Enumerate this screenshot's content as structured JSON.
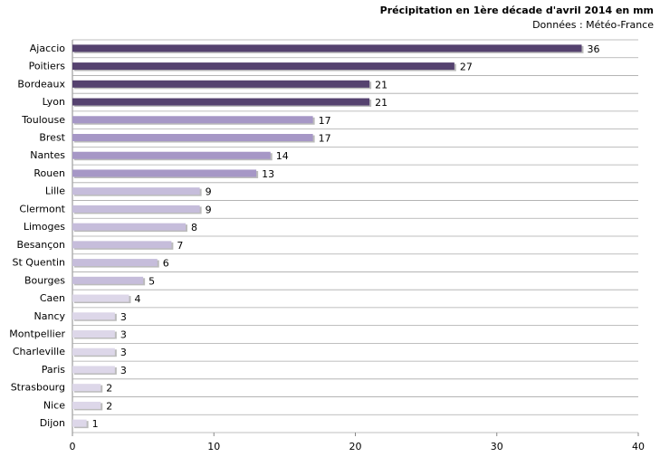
{
  "chart_data": {
    "type": "bar",
    "orientation": "horizontal",
    "title": "Précipitation en 1ère décade d'avril 2014  en mm",
    "subtitle": "Données : Météo-France",
    "categories": [
      "Ajaccio",
      "Poitiers",
      "Bordeaux",
      "Lyon",
      "Toulouse",
      "Brest",
      "Nantes",
      "Rouen",
      "Lille",
      "Clermont",
      "Limoges",
      "Besançon",
      "St Quentin",
      "Bourges",
      "Caen",
      "Nancy",
      "Montpellier",
      "Charleville",
      "Paris",
      "Strasbourg",
      "Nice",
      "Dijon"
    ],
    "values": [
      36,
      27,
      21,
      21,
      17,
      17,
      14,
      13,
      9,
      9,
      8,
      7,
      6,
      5,
      4,
      3,
      3,
      3,
      3,
      2,
      2,
      1
    ],
    "colors": [
      "#55426f",
      "#55426f",
      "#55426f",
      "#55426f",
      "#a697c6",
      "#a697c6",
      "#a697c6",
      "#a697c6",
      "#c6bddb",
      "#c6bddb",
      "#c6bddb",
      "#c6bddb",
      "#c6bddb",
      "#c6bddb",
      "#ddd7e9",
      "#ddd7e9",
      "#ddd7e9",
      "#ddd7e9",
      "#ddd7e9",
      "#ddd7e9",
      "#ddd7e9",
      "#ddd7e9"
    ],
    "xlim": [
      0,
      40
    ],
    "xticks": [
      0,
      10,
      20,
      30,
      40
    ]
  }
}
